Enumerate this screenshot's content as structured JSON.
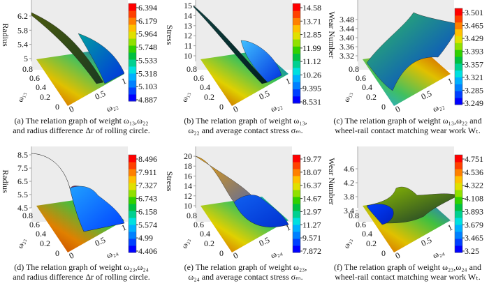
{
  "chart_data": [
    {
      "type": "surface",
      "panel": "a",
      "zlabel": "Radius",
      "xlabel": "ω₂₂",
      "ylabel": "ω₁₃",
      "xticks": [
        "0",
        "0.5",
        "1"
      ],
      "yticks": [
        "0",
        "0.2",
        "0.4",
        "0.6",
        "0.8"
      ],
      "zticks": [
        "5",
        "5.4",
        "5.8",
        "6.2"
      ],
      "colorbar": [
        "4.887",
        "5.103",
        "5.318",
        "5.533",
        "5.748",
        "5.964",
        "6.179",
        "6.394"
      ],
      "caption": [
        "(a)  The relation graph of weight ω₁₃,ω₂₂",
        "and radius difference  Δr of rolling circle."
      ]
    },
    {
      "type": "surface",
      "panel": "b",
      "zlabel": "Stress",
      "xlabel": "ω₂₂",
      "ylabel": "ω₁₃",
      "xticks": [
        "0",
        "0.5",
        "1"
      ],
      "yticks": [
        "0",
        "0.2",
        "0.4",
        "0.6",
        "0.8"
      ],
      "zticks": [
        "10",
        "11",
        "12",
        "13",
        "14",
        "15"
      ],
      "colorbar": [
        "8.531",
        "9.395",
        "10.26",
        "11.12",
        "11.99",
        "12.85",
        "13.71",
        "14.58"
      ],
      "caption": [
        "(b) The relation graph of weight ω₁₃,",
        "ω₂₂ and average contact stress σₘ."
      ]
    },
    {
      "type": "surface",
      "panel": "c",
      "zlabel": "Wear Number",
      "xlabel": "ω₂₂",
      "ylabel": "ω₁₃",
      "xticks": [
        "0",
        "0.5",
        "1"
      ],
      "yticks": [
        "0",
        "0.2",
        "0.4",
        "0.6",
        "0.8"
      ],
      "zticks": [
        "3.32",
        "3.36",
        "3.40",
        "3.44",
        "3.48"
      ],
      "colorbar": [
        "3.249",
        "3.285",
        "3.321",
        "3.357",
        "3.393",
        "3.429",
        "3.465",
        "3.501"
      ],
      "caption": [
        "(c) The relation graph of weight ω₁₃,ω₂₂ and",
        "wheel-rail contact matching wear work Wₜ."
      ]
    },
    {
      "type": "surface",
      "panel": "d",
      "zlabel": "Radius",
      "xlabel": "ω₂₄",
      "ylabel": "ω₂₃",
      "xticks": [
        "0",
        "0.5",
        "1"
      ],
      "yticks": [
        "0",
        "0.2",
        "0.4",
        "0.6",
        "0.8"
      ],
      "zticks": [
        "4.5",
        "5.5",
        "6.5",
        "7.5",
        "8.5"
      ],
      "colorbar": [
        "4.406",
        "4.99",
        "5.574",
        "6.158",
        "6.743",
        "7.327",
        "7.911",
        "8.496"
      ],
      "caption": [
        "(d) The relation graph of weight ω₂₃,ω₂₄",
        "and radius difference  Δr of rolling circle."
      ]
    },
    {
      "type": "surface",
      "panel": "e",
      "zlabel": "Stress",
      "xlabel": "ω₂₄",
      "ylabel": "ω₂₃",
      "xticks": [
        "0",
        "0.5",
        "1"
      ],
      "yticks": [
        "0",
        "0.2",
        "0.4",
        "0.6",
        "0.8"
      ],
      "zticks": [
        "10",
        "12",
        "14",
        "16",
        "18",
        "20"
      ],
      "colorbar": [
        "7.872",
        "9.571",
        "11.27",
        "12.97",
        "14.67",
        "16.37",
        "18.07",
        "19.77"
      ],
      "caption": [
        "(e) The relation graph of weight ω₂₃,",
        "ω₂₄ and average contact stress σₘ."
      ]
    },
    {
      "type": "surface",
      "panel": "f",
      "zlabel": "Wear Number",
      "xlabel": "ω₂₄",
      "ylabel": "ω₂₃",
      "xticks": [
        "0",
        "0.5",
        "1"
      ],
      "yticks": [
        "0",
        "0.2",
        "0.4",
        "0.6",
        "0.8"
      ],
      "zticks": [
        "3.4",
        "3.8",
        "4.2",
        "4.6"
      ],
      "colorbar": [
        "3.25",
        "3.465",
        "3.679",
        "3.893",
        "4.108",
        "4.322",
        "4.536",
        "4.751"
      ],
      "caption": [
        "(f) The relation graph of weight ω₂₃,ω₂₄ and",
        "wheel-rail contact matching wear work Wₜ."
      ]
    }
  ]
}
